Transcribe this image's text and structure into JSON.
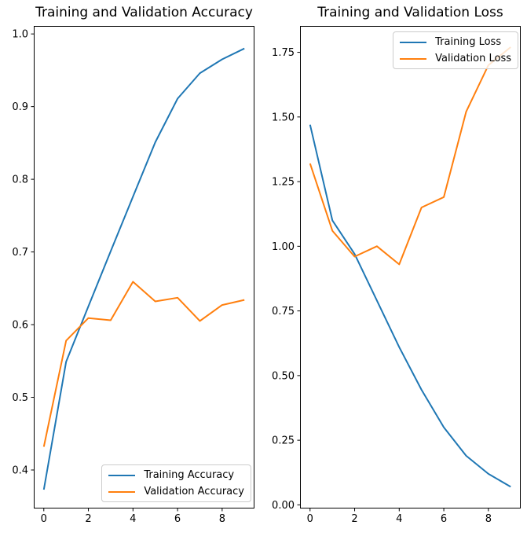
{
  "chart_data": [
    {
      "type": "line",
      "title": "Training and Validation Accuracy",
      "xlabel": "",
      "ylabel": "",
      "grid": false,
      "x": [
        0,
        1,
        2,
        3,
        4,
        5,
        6,
        7,
        8,
        9
      ],
      "series": [
        {
          "name": "Training Accuracy",
          "color": "#1f77b4",
          "values": [
            0.373,
            0.549,
            0.625,
            0.701,
            0.776,
            0.851,
            0.911,
            0.946,
            0.965,
            0.98
          ]
        },
        {
          "name": "Validation Accuracy",
          "color": "#ff7f0e",
          "values": [
            0.432,
            0.578,
            0.609,
            0.606,
            0.659,
            0.632,
            0.637,
            0.605,
            0.627,
            0.634
          ]
        }
      ],
      "xlim": [
        -0.45,
        9.45
      ],
      "ylim": [
        0.347,
        1.011
      ],
      "xticks": {
        "values": [
          0,
          2,
          4,
          6,
          8
        ],
        "labels": [
          "0",
          "2",
          "4",
          "6",
          "8"
        ]
      },
      "yticks": {
        "values": [
          0.4,
          0.5,
          0.6,
          0.7,
          0.8,
          0.9,
          1.0
        ],
        "labels": [
          "0.4",
          "0.5",
          "0.6",
          "0.7",
          "0.8",
          "0.9",
          "1.0"
        ]
      },
      "legend": {
        "position": "lower-right",
        "entries": [
          "Training Accuracy",
          "Validation Accuracy"
        ]
      }
    },
    {
      "type": "line",
      "title": "Training and Validation Loss",
      "xlabel": "",
      "ylabel": "",
      "grid": false,
      "x": [
        0,
        1,
        2,
        3,
        4,
        5,
        6,
        7,
        8,
        9
      ],
      "series": [
        {
          "name": "Training Loss",
          "color": "#1f77b4",
          "values": [
            1.47,
            1.1,
            0.97,
            0.79,
            0.61,
            0.445,
            0.3,
            0.19,
            0.12,
            0.07
          ]
        },
        {
          "name": "Validation Loss",
          "color": "#ff7f0e",
          "values": [
            1.32,
            1.06,
            0.96,
            1.0,
            0.93,
            1.15,
            1.19,
            1.52,
            1.7,
            1.77
          ]
        }
      ],
      "xlim": [
        -0.45,
        9.45
      ],
      "ylim": [
        -0.014,
        1.852
      ],
      "xticks": {
        "values": [
          0,
          2,
          4,
          6,
          8
        ],
        "labels": [
          "0",
          "2",
          "4",
          "6",
          "8"
        ]
      },
      "yticks": {
        "values": [
          0.0,
          0.25,
          0.5,
          0.75,
          1.0,
          1.25,
          1.5,
          1.75
        ],
        "labels": [
          "0.00",
          "0.25",
          "0.50",
          "0.75",
          "1.00",
          "1.25",
          "1.50",
          "1.75"
        ]
      },
      "legend": {
        "position": "upper-right",
        "entries": [
          "Training Loss",
          "Validation Loss"
        ]
      }
    }
  ],
  "style": {
    "axis_color": "#000000",
    "text_color": "#000000",
    "background_color": "#ffffff",
    "legend_border_color": "#cccccc"
  }
}
